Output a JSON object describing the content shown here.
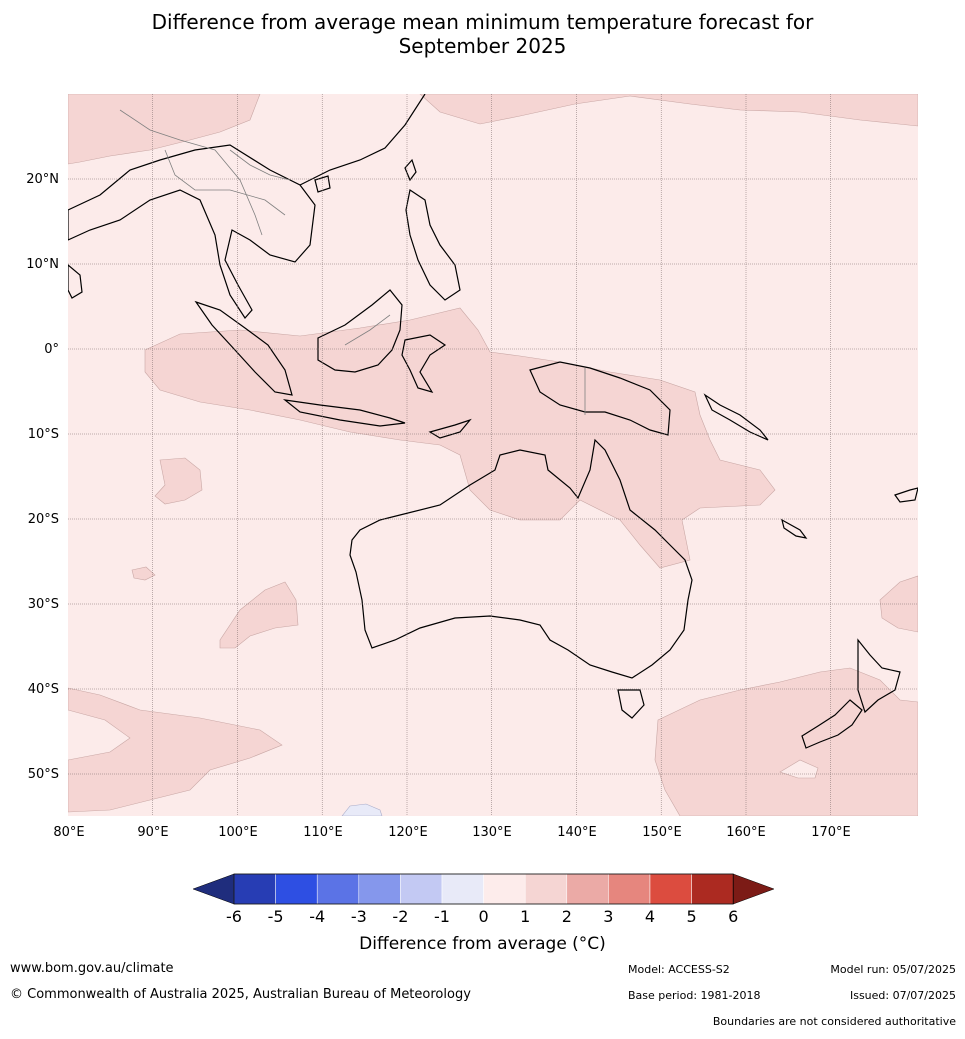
{
  "title": {
    "line1": "Difference from average mean minimum temperature forecast for",
    "line2": "September 2025"
  },
  "map": {
    "type": "contour-map",
    "lon_range": [
      80,
      180
    ],
    "lat_range": [
      -55,
      30
    ],
    "lon_ticks": [
      "80°E",
      "90°E",
      "100°E",
      "110°E",
      "120°E",
      "130°E",
      "140°E",
      "150°E",
      "160°E",
      "170°E"
    ],
    "lat_ticks": [
      "20°N",
      "10°N",
      "0°",
      "10°S",
      "20°S",
      "30°S",
      "40°S",
      "50°S"
    ],
    "gridlines": true,
    "dominant_category": "0 to 1 °C above average",
    "notable_regions": "1 to 2 °C above average over Maritime Continent, northern Australia, New Zealand and parts of the Southern Ocean; small patch of 0 to -1 °C south of Indonesia near 55°S, 115°E",
    "colors": {
      "background_0_1": "#fcebea",
      "band_1_2": "#f5d5d3",
      "band_m1_0": "#e8eaf8",
      "coast": "#000000",
      "border": "#808080"
    }
  },
  "colorbar": {
    "ticks": [
      "-6",
      "-5",
      "-4",
      "-3",
      "-2",
      "-1",
      "0",
      "1",
      "2",
      "3",
      "4",
      "5",
      "6"
    ],
    "colors": [
      "#1f2d7d",
      "#273db4",
      "#2e4fe3",
      "#5b73e6",
      "#8597ec",
      "#c3c9f3",
      "#e8eaf8",
      "#fdeceb",
      "#f5d5d3",
      "#ebaaa6",
      "#e6867e",
      "#dc4c3f",
      "#ac2a21",
      "#7c1b16"
    ],
    "title": "Difference from average ($^\\circ$C)",
    "title_display": "Difference from average (°C)"
  },
  "footer": {
    "website": "www.bom.gov.au/climate",
    "copyright": "© Commonwealth of Australia 2025, Australian Bureau of Meteorology",
    "model": "Model: ACCESS-S2",
    "base_period": "Base period: 1981-2018",
    "model_run": "Model run: 05/07/2025",
    "issued": "Issued: 07/07/2025",
    "disclaimer": "Boundaries are not considered authoritative"
  }
}
